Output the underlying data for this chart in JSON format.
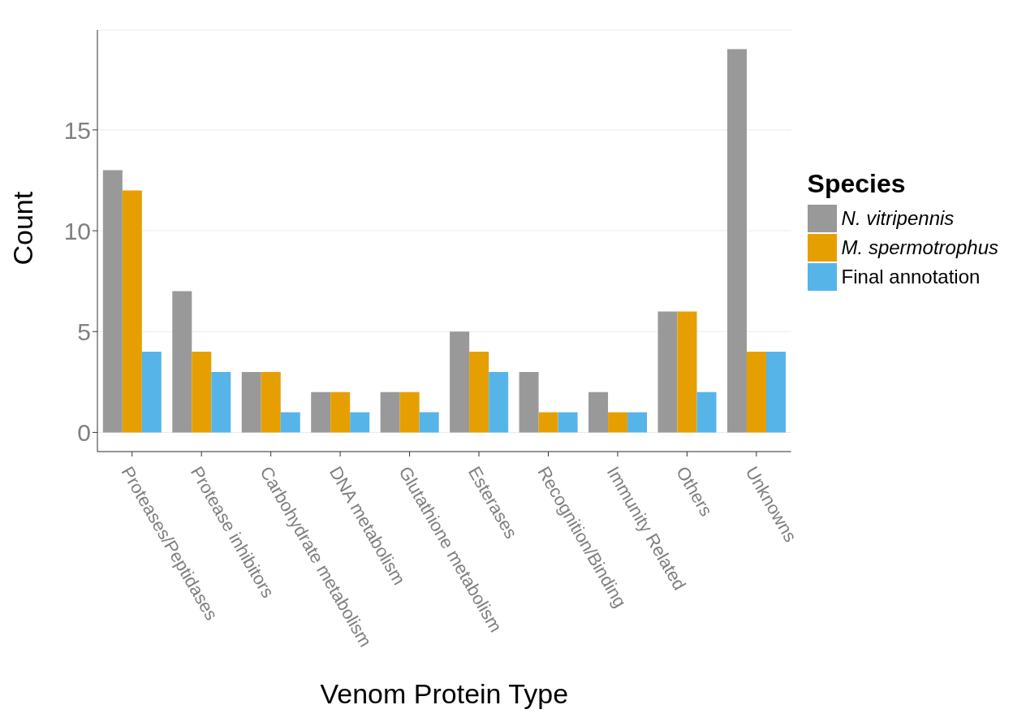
{
  "chart_data": {
    "type": "bar",
    "xlabel": "Venom Protein Type",
    "ylabel": "Count",
    "legend_title": "Species",
    "categories": [
      "Proteases/Peptidases",
      "Protease inhibitors",
      "Carbohydrate metabolism",
      "DNA metabolism",
      "Glutathione metabolism",
      "Esterases",
      "Recognition/Binding",
      "Immunity Related",
      "Others",
      "Unknowns"
    ],
    "series": [
      {
        "name": "N. vitripennis",
        "color": "#999999",
        "values": [
          13,
          7,
          3,
          2,
          2,
          5,
          3,
          2,
          6,
          19
        ]
      },
      {
        "name": "M. spermotrophus",
        "color": "#e69f00",
        "values": [
          12,
          4,
          3,
          2,
          2,
          4,
          1,
          1,
          6,
          4
        ]
      },
      {
        "name": "Final annotation",
        "color": "#56b4e9",
        "values": [
          4,
          3,
          1,
          1,
          1,
          3,
          1,
          1,
          2,
          4
        ]
      }
    ],
    "ylim": [
      -0.95,
      19.95
    ],
    "yticks": [
      0,
      5,
      10,
      15
    ],
    "grid": "y",
    "legend": "right"
  }
}
